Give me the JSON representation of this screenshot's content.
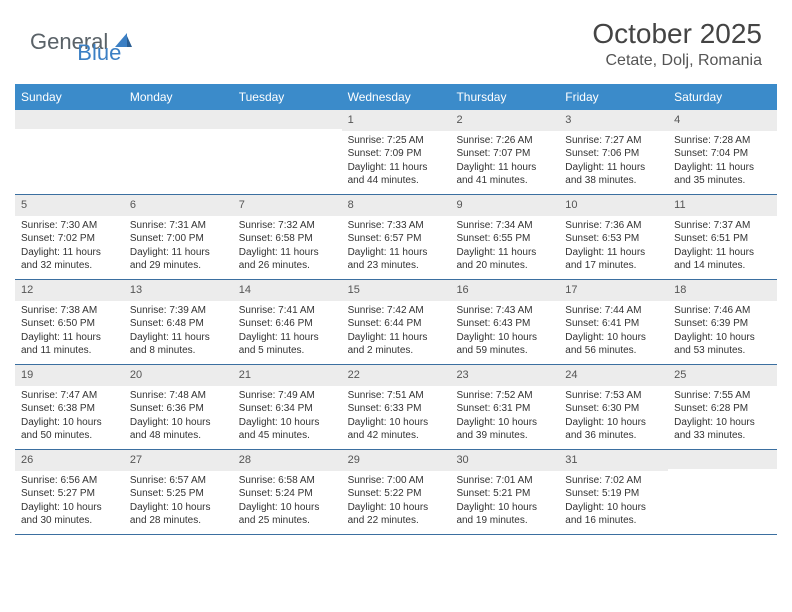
{
  "logo": {
    "text1": "General",
    "text2": "Blue"
  },
  "title": "October 2025",
  "location": "Cetate, Dolj, Romania",
  "colors": {
    "header_bg": "#3b8bca",
    "header_text": "#ffffff",
    "daynum_bg": "#ececec",
    "row_border": "#3b6fa0",
    "logo_gray": "#5a6268",
    "logo_blue": "#3b7fc4"
  },
  "day_headers": [
    "Sunday",
    "Monday",
    "Tuesday",
    "Wednesday",
    "Thursday",
    "Friday",
    "Saturday"
  ],
  "weeks": [
    [
      {
        "n": "",
        "sr": "",
        "ss": "",
        "dl": ""
      },
      {
        "n": "",
        "sr": "",
        "ss": "",
        "dl": ""
      },
      {
        "n": "",
        "sr": "",
        "ss": "",
        "dl": ""
      },
      {
        "n": "1",
        "sr": "Sunrise: 7:25 AM",
        "ss": "Sunset: 7:09 PM",
        "dl": "Daylight: 11 hours and 44 minutes."
      },
      {
        "n": "2",
        "sr": "Sunrise: 7:26 AM",
        "ss": "Sunset: 7:07 PM",
        "dl": "Daylight: 11 hours and 41 minutes."
      },
      {
        "n": "3",
        "sr": "Sunrise: 7:27 AM",
        "ss": "Sunset: 7:06 PM",
        "dl": "Daylight: 11 hours and 38 minutes."
      },
      {
        "n": "4",
        "sr": "Sunrise: 7:28 AM",
        "ss": "Sunset: 7:04 PM",
        "dl": "Daylight: 11 hours and 35 minutes."
      }
    ],
    [
      {
        "n": "5",
        "sr": "Sunrise: 7:30 AM",
        "ss": "Sunset: 7:02 PM",
        "dl": "Daylight: 11 hours and 32 minutes."
      },
      {
        "n": "6",
        "sr": "Sunrise: 7:31 AM",
        "ss": "Sunset: 7:00 PM",
        "dl": "Daylight: 11 hours and 29 minutes."
      },
      {
        "n": "7",
        "sr": "Sunrise: 7:32 AM",
        "ss": "Sunset: 6:58 PM",
        "dl": "Daylight: 11 hours and 26 minutes."
      },
      {
        "n": "8",
        "sr": "Sunrise: 7:33 AM",
        "ss": "Sunset: 6:57 PM",
        "dl": "Daylight: 11 hours and 23 minutes."
      },
      {
        "n": "9",
        "sr": "Sunrise: 7:34 AM",
        "ss": "Sunset: 6:55 PM",
        "dl": "Daylight: 11 hours and 20 minutes."
      },
      {
        "n": "10",
        "sr": "Sunrise: 7:36 AM",
        "ss": "Sunset: 6:53 PM",
        "dl": "Daylight: 11 hours and 17 minutes."
      },
      {
        "n": "11",
        "sr": "Sunrise: 7:37 AM",
        "ss": "Sunset: 6:51 PM",
        "dl": "Daylight: 11 hours and 14 minutes."
      }
    ],
    [
      {
        "n": "12",
        "sr": "Sunrise: 7:38 AM",
        "ss": "Sunset: 6:50 PM",
        "dl": "Daylight: 11 hours and 11 minutes."
      },
      {
        "n": "13",
        "sr": "Sunrise: 7:39 AM",
        "ss": "Sunset: 6:48 PM",
        "dl": "Daylight: 11 hours and 8 minutes."
      },
      {
        "n": "14",
        "sr": "Sunrise: 7:41 AM",
        "ss": "Sunset: 6:46 PM",
        "dl": "Daylight: 11 hours and 5 minutes."
      },
      {
        "n": "15",
        "sr": "Sunrise: 7:42 AM",
        "ss": "Sunset: 6:44 PM",
        "dl": "Daylight: 11 hours and 2 minutes."
      },
      {
        "n": "16",
        "sr": "Sunrise: 7:43 AM",
        "ss": "Sunset: 6:43 PM",
        "dl": "Daylight: 10 hours and 59 minutes."
      },
      {
        "n": "17",
        "sr": "Sunrise: 7:44 AM",
        "ss": "Sunset: 6:41 PM",
        "dl": "Daylight: 10 hours and 56 minutes."
      },
      {
        "n": "18",
        "sr": "Sunrise: 7:46 AM",
        "ss": "Sunset: 6:39 PM",
        "dl": "Daylight: 10 hours and 53 minutes."
      }
    ],
    [
      {
        "n": "19",
        "sr": "Sunrise: 7:47 AM",
        "ss": "Sunset: 6:38 PM",
        "dl": "Daylight: 10 hours and 50 minutes."
      },
      {
        "n": "20",
        "sr": "Sunrise: 7:48 AM",
        "ss": "Sunset: 6:36 PM",
        "dl": "Daylight: 10 hours and 48 minutes."
      },
      {
        "n": "21",
        "sr": "Sunrise: 7:49 AM",
        "ss": "Sunset: 6:34 PM",
        "dl": "Daylight: 10 hours and 45 minutes."
      },
      {
        "n": "22",
        "sr": "Sunrise: 7:51 AM",
        "ss": "Sunset: 6:33 PM",
        "dl": "Daylight: 10 hours and 42 minutes."
      },
      {
        "n": "23",
        "sr": "Sunrise: 7:52 AM",
        "ss": "Sunset: 6:31 PM",
        "dl": "Daylight: 10 hours and 39 minutes."
      },
      {
        "n": "24",
        "sr": "Sunrise: 7:53 AM",
        "ss": "Sunset: 6:30 PM",
        "dl": "Daylight: 10 hours and 36 minutes."
      },
      {
        "n": "25",
        "sr": "Sunrise: 7:55 AM",
        "ss": "Sunset: 6:28 PM",
        "dl": "Daylight: 10 hours and 33 minutes."
      }
    ],
    [
      {
        "n": "26",
        "sr": "Sunrise: 6:56 AM",
        "ss": "Sunset: 5:27 PM",
        "dl": "Daylight: 10 hours and 30 minutes."
      },
      {
        "n": "27",
        "sr": "Sunrise: 6:57 AM",
        "ss": "Sunset: 5:25 PM",
        "dl": "Daylight: 10 hours and 28 minutes."
      },
      {
        "n": "28",
        "sr": "Sunrise: 6:58 AM",
        "ss": "Sunset: 5:24 PM",
        "dl": "Daylight: 10 hours and 25 minutes."
      },
      {
        "n": "29",
        "sr": "Sunrise: 7:00 AM",
        "ss": "Sunset: 5:22 PM",
        "dl": "Daylight: 10 hours and 22 minutes."
      },
      {
        "n": "30",
        "sr": "Sunrise: 7:01 AM",
        "ss": "Sunset: 5:21 PM",
        "dl": "Daylight: 10 hours and 19 minutes."
      },
      {
        "n": "31",
        "sr": "Sunrise: 7:02 AM",
        "ss": "Sunset: 5:19 PM",
        "dl": "Daylight: 10 hours and 16 minutes."
      },
      {
        "n": "",
        "sr": "",
        "ss": "",
        "dl": ""
      }
    ]
  ]
}
